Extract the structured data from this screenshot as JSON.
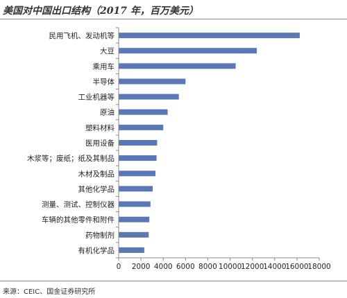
{
  "title": "美国对中国出口结构（2017 年，百万美元）",
  "source": "来源：CEIC、国金证券研究所",
  "colors": {
    "bar": "#5b78b5",
    "axis": "#888888",
    "text": "#222222"
  },
  "chart_data": {
    "type": "bar",
    "orientation": "horizontal",
    "title": "美国对中国出口结构（2017 年，百万美元）",
    "xlabel": "",
    "ylabel": "",
    "xlim": [
      0,
      18000
    ],
    "xticks": [
      0,
      2000,
      4000,
      6000,
      8000,
      10000,
      12000,
      14000,
      16000,
      18000
    ],
    "grid": false,
    "categories": [
      "民用飞机、发动机等",
      "大豆",
      "乘用车",
      "半导体",
      "工业机器等",
      "原油",
      "塑料材料",
      "医用设备",
      "木浆等；废纸；纸及其制品",
      "木材及制品",
      "其他化学品",
      "测量、测试、控制仪器",
      "车辆的其他零件和附件",
      "药物制剂",
      "有机化学品"
    ],
    "values": [
      16250,
      12400,
      10500,
      6000,
      5400,
      4400,
      4000,
      3450,
      3400,
      3300,
      3050,
      2850,
      2750,
      2700,
      2300
    ]
  }
}
